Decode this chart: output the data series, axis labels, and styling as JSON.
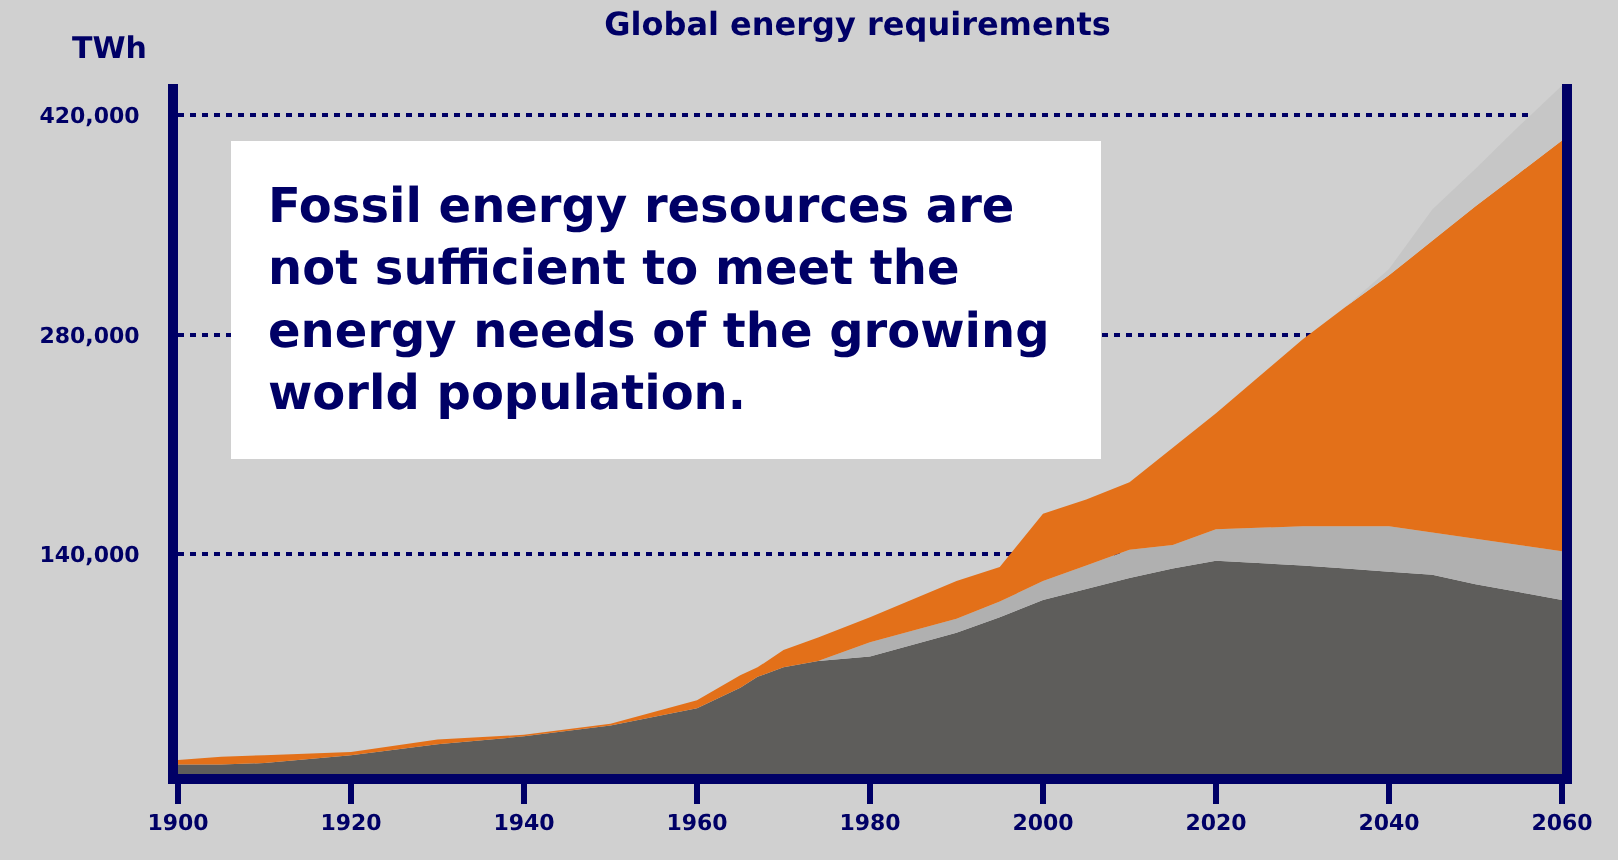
{
  "chart_data": {
    "type": "area",
    "title": "Global energy requirements",
    "ylabel": "TWh",
    "stacked": true,
    "grid": "y",
    "annotations": [
      "Fossil energy resources are\nnot sufficient to meet the\nenergy needs of the growing\nworld population."
    ],
    "x": [
      1900,
      1905,
      1910,
      1920,
      1930,
      1940,
      1950,
      1960,
      1965,
      1967,
      1970,
      1974,
      1980,
      1990,
      1995,
      2000,
      2005,
      2010,
      2015,
      2020,
      2030,
      2035,
      2040,
      2045,
      2050,
      2055,
      2060
    ],
    "xlim": [
      1900,
      2060
    ],
    "xticks": [
      1900,
      1920,
      1940,
      1960,
      1980,
      2000,
      2020,
      2040,
      2060
    ],
    "ylim": [
      0,
      440000
    ],
    "yticks": [
      {
        "value": 140000,
        "label": "140,000"
      },
      {
        "value": 280000,
        "label": "280,000"
      },
      {
        "value": 420000,
        "label": "420,000"
      }
    ],
    "series": [
      {
        "color": "#5e5d5b",
        "values": [
          6000,
          6000,
          7000,
          12000,
          19000,
          24000,
          31000,
          42000,
          55000,
          62000,
          68000,
          72000,
          75000,
          90000,
          100000,
          111000,
          118000,
          125000,
          131000,
          136000,
          133000,
          131000,
          129000,
          127000,
          121000,
          116000,
          111000
        ]
      },
      {
        "color": "#b0b0b0",
        "values": [
          0,
          0,
          0,
          0,
          0,
          0,
          0,
          0,
          0,
          0,
          0,
          0,
          9000,
          9000,
          10000,
          12000,
          15000,
          18000,
          15000,
          20000,
          25000,
          27000,
          29000,
          27000,
          29000,
          30000,
          31000
        ]
      },
      {
        "color": "#e37019",
        "values": [
          3000,
          5000,
          5000,
          2000,
          3000,
          1000,
          1000,
          5000,
          8000,
          6000,
          11000,
          15000,
          16000,
          24000,
          22000,
          43000,
          42000,
          43000,
          62000,
          74000,
          119000,
          140000,
          160000,
          186000,
          212000,
          237000,
          262000
        ]
      },
      {
        "color": "#c6c6c6",
        "values": [
          0,
          0,
          0,
          0,
          0,
          0,
          0,
          0,
          0,
          0,
          0,
          0,
          0,
          0,
          0,
          0,
          0,
          0,
          0,
          0,
          0,
          0,
          4000,
          20000,
          24000,
          30000,
          35000
        ]
      }
    ]
  }
}
